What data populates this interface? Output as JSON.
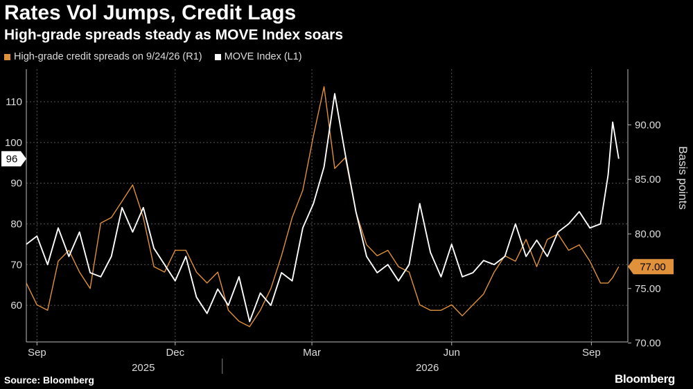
{
  "title": "Rates Vol Jumps, Credit Lags",
  "subtitle": "High-grade spreads steady as MOVE Index soars",
  "legend": [
    {
      "label": "High-grade credit spreads on 9/24/26 (R1)",
      "color": "#e0913a"
    },
    {
      "label": "MOVE Index (L1)",
      "color": "#ffffff"
    }
  ],
  "source": "Source: Bloomberg",
  "brand": "Bloomberg",
  "colors": {
    "background": "#000000",
    "spreads": "#e0913a",
    "move": "#ffffff",
    "grid": "#555555"
  },
  "chart_data": {
    "type": "line",
    "x_range": [
      "2025-08-25",
      "2026-09-25"
    ],
    "x_ticks": [
      {
        "date": "2025-09-01",
        "label": "Sep"
      },
      {
        "date": "2025-12-01",
        "label": "Dec"
      },
      {
        "date": "2026-03-01",
        "label": "Mar"
      },
      {
        "date": "2026-06-01",
        "label": "Jun"
      },
      {
        "date": "2026-09-01",
        "label": "Sep"
      }
    ],
    "year_labels": [
      {
        "date": "2025-11-10",
        "label": "2025"
      },
      {
        "date": "2026-05-16",
        "label": "2026"
      }
    ],
    "year_divider": "2026-01-01",
    "left_axis": {
      "ticks": [
        60,
        70,
        80,
        90,
        100,
        110
      ],
      "ylim": [
        51,
        118
      ]
    },
    "right_axis": {
      "label": "Basis points",
      "ticks": [
        "70.00",
        "75.00",
        "80.00",
        "85.00",
        "90.00"
      ],
      "ylim": [
        70.1,
        95.1
      ]
    },
    "end_labels": {
      "move": "96",
      "spreads": "77.00"
    },
    "series": [
      {
        "name": "MOVE Index (L1)",
        "axis": "left",
        "points": [
          [
            "2025-08-25",
            75
          ],
          [
            "2025-09-01",
            77
          ],
          [
            "2025-09-08",
            70
          ],
          [
            "2025-09-15",
            79
          ],
          [
            "2025-09-22",
            72
          ],
          [
            "2025-09-29",
            78
          ],
          [
            "2025-10-06",
            68
          ],
          [
            "2025-10-13",
            67
          ],
          [
            "2025-10-20",
            72
          ],
          [
            "2025-10-27",
            84
          ],
          [
            "2025-11-03",
            78
          ],
          [
            "2025-11-10",
            84
          ],
          [
            "2025-11-17",
            74
          ],
          [
            "2025-11-24",
            70
          ],
          [
            "2025-12-01",
            66
          ],
          [
            "2025-12-08",
            72
          ],
          [
            "2025-12-15",
            62
          ],
          [
            "2025-12-22",
            58
          ],
          [
            "2025-12-29",
            64
          ],
          [
            "2026-01-05",
            60
          ],
          [
            "2026-01-12",
            67
          ],
          [
            "2026-01-19",
            56
          ],
          [
            "2026-01-26",
            63
          ],
          [
            "2026-02-02",
            60
          ],
          [
            "2026-02-09",
            68
          ],
          [
            "2026-02-16",
            66
          ],
          [
            "2026-02-23",
            79
          ],
          [
            "2026-03-02",
            85
          ],
          [
            "2026-03-09",
            94
          ],
          [
            "2026-03-16",
            112
          ],
          [
            "2026-03-23",
            97
          ],
          [
            "2026-03-30",
            83
          ],
          [
            "2026-04-06",
            72
          ],
          [
            "2026-04-13",
            68
          ],
          [
            "2026-04-20",
            70
          ],
          [
            "2026-04-27",
            66
          ],
          [
            "2026-05-04",
            70
          ],
          [
            "2026-05-11",
            85
          ],
          [
            "2026-05-18",
            73
          ],
          [
            "2026-05-25",
            67
          ],
          [
            "2026-06-01",
            75
          ],
          [
            "2026-06-08",
            67
          ],
          [
            "2026-06-15",
            68
          ],
          [
            "2026-06-22",
            71
          ],
          [
            "2026-06-29",
            70
          ],
          [
            "2026-07-06",
            72
          ],
          [
            "2026-07-13",
            80
          ],
          [
            "2026-07-20",
            72
          ],
          [
            "2026-07-27",
            76
          ],
          [
            "2026-08-03",
            72
          ],
          [
            "2026-08-10",
            78
          ],
          [
            "2026-08-17",
            80
          ],
          [
            "2026-08-24",
            83
          ],
          [
            "2026-08-31",
            79
          ],
          [
            "2026-09-07",
            80
          ],
          [
            "2026-09-12",
            92
          ],
          [
            "2026-09-15",
            105
          ],
          [
            "2026-09-19",
            96
          ]
        ]
      },
      {
        "name": "High-grade credit spreads on 9/24/26 (R1)",
        "axis": "right",
        "points": [
          [
            "2025-08-25",
            75.5
          ],
          [
            "2025-09-01",
            73.5
          ],
          [
            "2025-09-08",
            73.0
          ],
          [
            "2025-09-15",
            77.5
          ],
          [
            "2025-09-22",
            78.5
          ],
          [
            "2025-09-29",
            76.5
          ],
          [
            "2025-10-06",
            75.0
          ],
          [
            "2025-10-13",
            81.0
          ],
          [
            "2025-10-20",
            81.5
          ],
          [
            "2025-10-27",
            83.0
          ],
          [
            "2025-11-03",
            84.5
          ],
          [
            "2025-11-10",
            81.5
          ],
          [
            "2025-11-17",
            77.0
          ],
          [
            "2025-11-24",
            76.5
          ],
          [
            "2025-12-01",
            78.5
          ],
          [
            "2025-12-08",
            78.5
          ],
          [
            "2025-12-15",
            76.5
          ],
          [
            "2025-12-22",
            75.5
          ],
          [
            "2025-12-29",
            76.5
          ],
          [
            "2026-01-05",
            73.0
          ],
          [
            "2026-01-12",
            72.0
          ],
          [
            "2026-01-19",
            71.5
          ],
          [
            "2026-01-26",
            73.0
          ],
          [
            "2026-02-02",
            75.0
          ],
          [
            "2026-02-09",
            78.0
          ],
          [
            "2026-02-16",
            81.5
          ],
          [
            "2026-02-23",
            84.0
          ],
          [
            "2026-03-02",
            89.0
          ],
          [
            "2026-03-09",
            93.5
          ],
          [
            "2026-03-16",
            86.0
          ],
          [
            "2026-03-23",
            87.0
          ],
          [
            "2026-03-30",
            82.0
          ],
          [
            "2026-04-06",
            79.0
          ],
          [
            "2026-04-13",
            78.0
          ],
          [
            "2026-04-20",
            78.5
          ],
          [
            "2026-04-27",
            77.0
          ],
          [
            "2026-05-04",
            76.5
          ],
          [
            "2026-05-11",
            73.5
          ],
          [
            "2026-05-18",
            73.0
          ],
          [
            "2026-05-25",
            73.0
          ],
          [
            "2026-06-01",
            73.5
          ],
          [
            "2026-06-08",
            72.5
          ],
          [
            "2026-06-15",
            73.5
          ],
          [
            "2026-06-22",
            74.5
          ],
          [
            "2026-06-29",
            76.5
          ],
          [
            "2026-07-06",
            78.0
          ],
          [
            "2026-07-13",
            77.5
          ],
          [
            "2026-07-20",
            79.5
          ],
          [
            "2026-07-27",
            77.0
          ],
          [
            "2026-08-03",
            79.5
          ],
          [
            "2026-08-10",
            80.0
          ],
          [
            "2026-08-17",
            78.5
          ],
          [
            "2026-08-24",
            79.0
          ],
          [
            "2026-08-31",
            77.5
          ],
          [
            "2026-09-07",
            75.5
          ],
          [
            "2026-09-12",
            75.5
          ],
          [
            "2026-09-15",
            76.0
          ],
          [
            "2026-09-19",
            77.0
          ]
        ]
      }
    ]
  }
}
